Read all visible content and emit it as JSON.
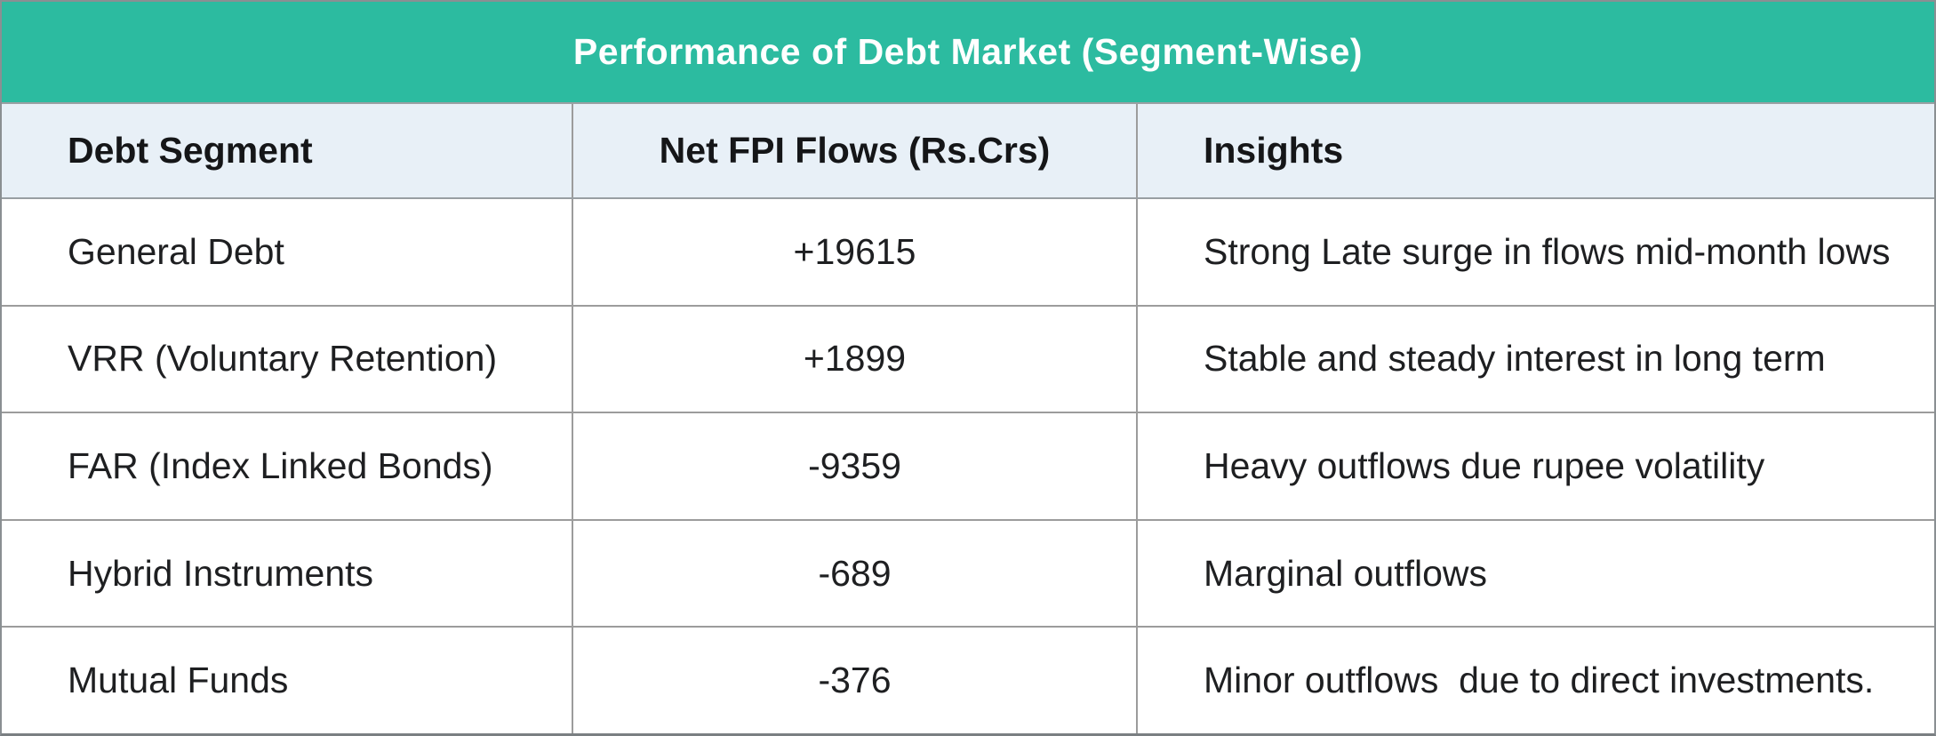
{
  "title_bar": {
    "text": "Performance of Debt Market (Segment-Wise)"
  },
  "table": {
    "headers": [
      {
        "label": "Debt Segment"
      },
      {
        "label": "Net FPI Flows (Rs.Crs)"
      },
      {
        "label": "Insights"
      }
    ],
    "rows": [
      {
        "segment": "General Debt",
        "net_fpi_flows": "+19615",
        "insight": "Strong Late surge in flows mid-month lows"
      },
      {
        "segment": "VRR (Voluntary Retention)",
        "net_fpi_flows": "+1899",
        "insight": "Stable and steady interest in long term"
      },
      {
        "segment": "FAR (Index Linked Bonds)",
        "net_fpi_flows": "-9359",
        "insight": "Heavy outflows due rupee volatility"
      },
      {
        "segment": "Hybrid Instruments",
        "net_fpi_flows": "-689",
        "insight": "Marginal outflows"
      },
      {
        "segment": "Mutual Funds",
        "net_fpi_flows": "-376",
        "insight": "Minor outflows  due to direct investments."
      }
    ]
  },
  "colors": {
    "title_bg": "#2cbba0",
    "title_text": "#ffffff",
    "header_bg": "#e8f0f7",
    "row_bg": "#ffffff",
    "grid_line": "#9c9c9c",
    "text": "#1e1f21"
  },
  "chart_data": {
    "type": "table",
    "title": "Performance of Debt Market (Segment-Wise)",
    "columns": [
      "Debt Segment",
      "Net FPI Flows (Rs.Crs)",
      "Insights"
    ],
    "rows": [
      [
        "General Debt",
        19615,
        "Strong Late surge in flows mid-month lows"
      ],
      [
        "VRR (Voluntary Retention)",
        1899,
        "Stable and steady interest in long term"
      ],
      [
        "FAR (Index Linked Bonds)",
        -9359,
        "Heavy outflows due rupee volatility"
      ],
      [
        "Hybrid Instruments",
        -689,
        "Marginal outflows"
      ],
      [
        "Mutual Funds",
        -376,
        "Minor outflows  due to direct investments."
      ]
    ],
    "value_column_unit": "Rs. Crores",
    "layout": {
      "title_band_color": "#2cbba0",
      "header_row_color": "#e8f0f7",
      "alignment": [
        "left",
        "center",
        "left"
      ]
    }
  }
}
